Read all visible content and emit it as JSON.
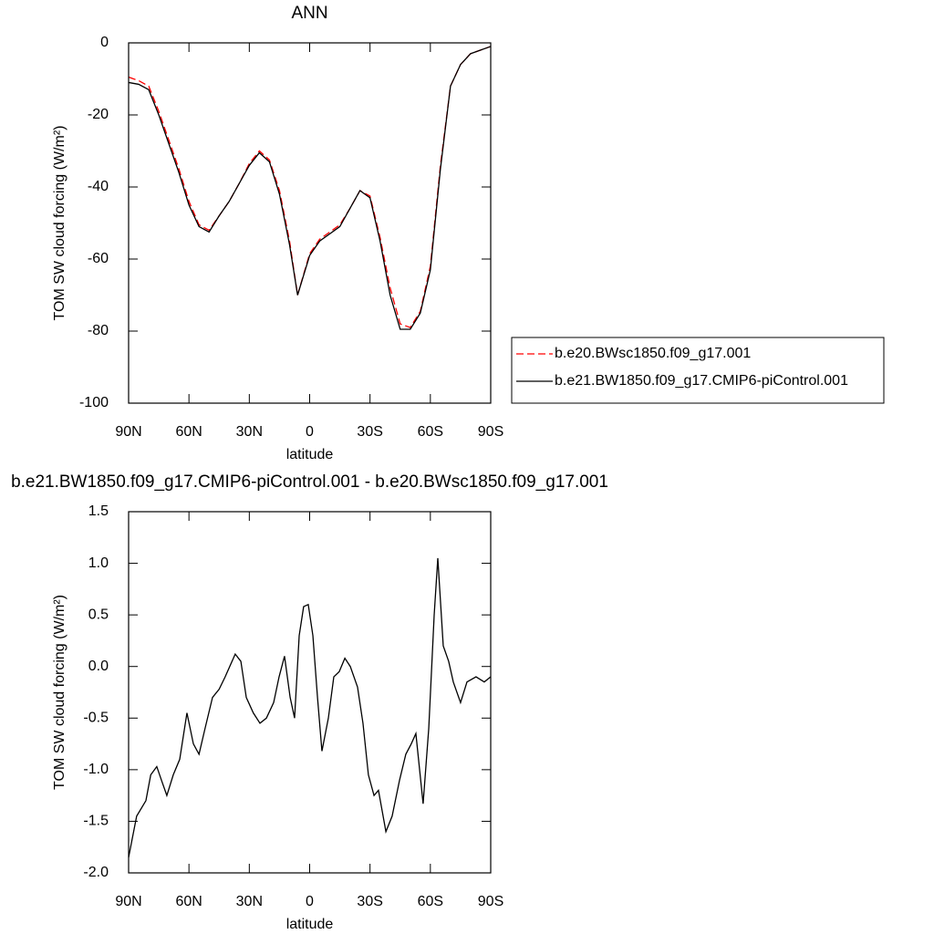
{
  "chart_data": [
    {
      "type": "line",
      "title": "ANN",
      "x_label": "latitude",
      "y_label": "TOM SW cloud forcing (W/m²)",
      "x": [
        90,
        85,
        80,
        75,
        70,
        65,
        60,
        55,
        50,
        45,
        40,
        35,
        30,
        25,
        20,
        15,
        10,
        6,
        0,
        -5,
        -10,
        -15,
        -20,
        -25,
        -30,
        -35,
        -40,
        -45,
        -50,
        -55,
        -60,
        -65,
        -70,
        -75,
        -80,
        -85,
        -90
      ],
      "series": [
        {
          "name": "b.e20.BWsc1850.f09_g17.001",
          "color": "#ff0000",
          "dashed": true,
          "values": [
            -9.5,
            -10.5,
            -12,
            -19,
            -27,
            -35,
            -44,
            -50.5,
            -52,
            -48,
            -44,
            -39,
            -33.5,
            -30,
            -32.5,
            -41,
            -55,
            -70,
            -58.5,
            -54.5,
            -52.5,
            -50.5,
            -46,
            -41,
            -42.5,
            -54,
            -68,
            -78,
            -79,
            -74.5,
            -62,
            -34,
            -12,
            -6,
            -3,
            -2,
            -1
          ]
        },
        {
          "name": "b.e21.BW1850.f09_g17.CMIP6-piControl.001",
          "color": "#000000",
          "dashed": false,
          "values": [
            -11,
            -11.5,
            -13,
            -20,
            -28,
            -36,
            -45,
            -51,
            -52.5,
            -48,
            -44,
            -39,
            -34,
            -30.5,
            -33,
            -42,
            -56,
            -70,
            -59,
            -55,
            -53,
            -51,
            -46,
            -41,
            -43,
            -55,
            -70,
            -79.5,
            -79.5,
            -75,
            -63,
            -35,
            -12,
            -6,
            -3,
            -2,
            -1
          ]
        }
      ],
      "xlim": [
        90,
        -90
      ],
      "xticks": [
        {
          "value": 90,
          "label": "90N"
        },
        {
          "value": 60,
          "label": "60N"
        },
        {
          "value": 30,
          "label": "30N"
        },
        0,
        {
          "value": -30,
          "label": "30S"
        },
        {
          "value": -60,
          "label": "60S"
        },
        {
          "value": -90,
          "label": "90S"
        }
      ],
      "ylim": [
        -100,
        0
      ],
      "yticks": [
        0,
        -20,
        -40,
        -60,
        -80,
        -100
      ],
      "legend": "outside-right"
    },
    {
      "type": "line",
      "title": "b.e21.BW1850.f09_g17.CMIP6-piControl.001 - b.e20.BWsc1850.f09_g17.001",
      "x_label": "latitude",
      "y_label": "TOM SW cloud forcing (W/m²)",
      "x": [
        90,
        86,
        81.4,
        79,
        76,
        73.7,
        71,
        67.8,
        64.6,
        61,
        57.8,
        55,
        52,
        48.3,
        45,
        42,
        37,
        34.2,
        31.5,
        28,
        24.7,
        21.5,
        17.9,
        15.2,
        12.5,
        9.7,
        7.5,
        5.2,
        3,
        0.7,
        -1.6,
        -3.9,
        -6.1,
        -9.3,
        -12,
        -14.7,
        -17.5,
        -20.2,
        -23.8,
        -26.5,
        -29.2,
        -32,
        -34.2,
        -37.9,
        -41,
        -44.7,
        -47.8,
        -50.5,
        -52.8,
        -56.4,
        -59.2,
        -61.9,
        -63.7,
        -66.4,
        -69.1,
        -71.4,
        -75,
        -78.2,
        -82.7,
        -86.8,
        -90
      ],
      "color": "#000000",
      "values": [
        -1.85,
        -1.45,
        -1.3,
        -1.05,
        -0.97,
        -1.1,
        -1.25,
        -1.05,
        -0.9,
        -0.45,
        -0.75,
        -0.85,
        -0.6,
        -0.3,
        -0.22,
        -0.1,
        0.12,
        0.05,
        -0.3,
        -0.45,
        -0.55,
        -0.5,
        -0.35,
        -0.1,
        0.1,
        -0.3,
        -0.5,
        0.3,
        0.58,
        0.6,
        0.3,
        -0.3,
        -0.82,
        -0.5,
        -0.1,
        -0.05,
        0.08,
        0,
        -0.2,
        -0.55,
        -1.05,
        -1.25,
        -1.2,
        -1.6,
        -1.45,
        -1.1,
        -0.85,
        -0.75,
        -0.65,
        -1.33,
        -0.6,
        0.5,
        1.05,
        0.2,
        0.05,
        -0.15,
        -0.35,
        -0.15,
        -0.1,
        -0.15,
        -0.1
      ],
      "xlim": [
        90,
        -90
      ],
      "xticks": [
        {
          "value": 90,
          "label": "90N"
        },
        {
          "value": 60,
          "label": "60N"
        },
        {
          "value": 30,
          "label": "30N"
        },
        0,
        {
          "value": -30,
          "label": "30S"
        },
        {
          "value": -60,
          "label": "60S"
        },
        {
          "value": -90,
          "label": "90S"
        }
      ],
      "ylim": [
        -2,
        1.5
      ],
      "yticks": [
        1.5,
        {
          "value": 1,
          "label": "1.0"
        },
        0.5,
        {
          "value": 0,
          "label": "0.0"
        },
        -0.5,
        {
          "value": -1,
          "label": "-1.0"
        },
        -1.5,
        {
          "value": -2,
          "label": "-2.0"
        }
      ]
    }
  ]
}
